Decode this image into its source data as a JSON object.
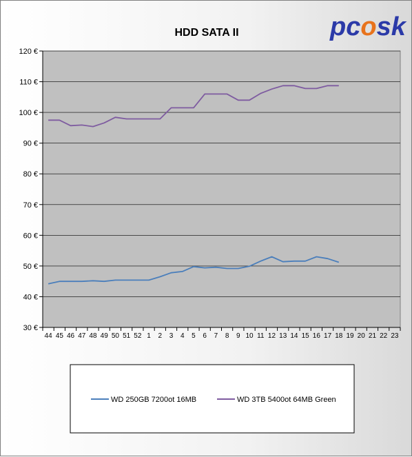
{
  "chart_data": {
    "type": "line",
    "title": "HDD SATA II",
    "logo": "pcosk",
    "y_tick_labels": [
      "30 €",
      "40 €",
      "50 €",
      "60 €",
      "70 €",
      "80 €",
      "90 €",
      "100 €",
      "110 €",
      "120 €"
    ],
    "ylim": [
      30,
      120
    ],
    "y_step": 10,
    "grid": true,
    "legend_position": "bottom",
    "categories": [
      "44",
      "45",
      "46",
      "47",
      "48",
      "49",
      "50",
      "51",
      "52",
      "1",
      "2",
      "3",
      "4",
      "5",
      "6",
      "7",
      "8",
      "9",
      "10",
      "11",
      "12",
      "13",
      "14",
      "15",
      "16",
      "17",
      "18",
      "19",
      "20",
      "21",
      "22",
      "23"
    ],
    "series": [
      {
        "name": "WD 250GB 7200ot 16MB",
        "color": "#4a7ebb",
        "values": [
          44.2,
          45.0,
          45.0,
          45.0,
          45.2,
          45.0,
          45.4,
          45.4,
          45.4,
          45.4,
          46.5,
          47.8,
          48.2,
          49.8,
          49.4,
          49.6,
          49.2,
          49.2,
          49.9,
          51.6,
          53.0,
          51.4,
          51.6,
          51.6,
          53.0,
          52.4,
          51.2,
          null,
          null,
          null,
          null,
          null
        ]
      },
      {
        "name": "WD 3TB 5400ot 64MB Green",
        "color": "#7e5ba0",
        "values": [
          97.5,
          97.5,
          95.7,
          95.9,
          95.4,
          96.6,
          98.4,
          97.9,
          97.9,
          97.9,
          97.9,
          101.5,
          101.5,
          101.5,
          106.0,
          106.0,
          106.0,
          104.0,
          104.0,
          106.2,
          107.6,
          108.7,
          108.7,
          107.8,
          107.8,
          108.7,
          108.7,
          null,
          null,
          null,
          null,
          null
        ]
      }
    ]
  },
  "colors": {
    "plot_background": "#c0c0c0",
    "gridline": "#000000",
    "logo_blue": "#2b3aa8",
    "logo_flame": "#e8731c"
  }
}
